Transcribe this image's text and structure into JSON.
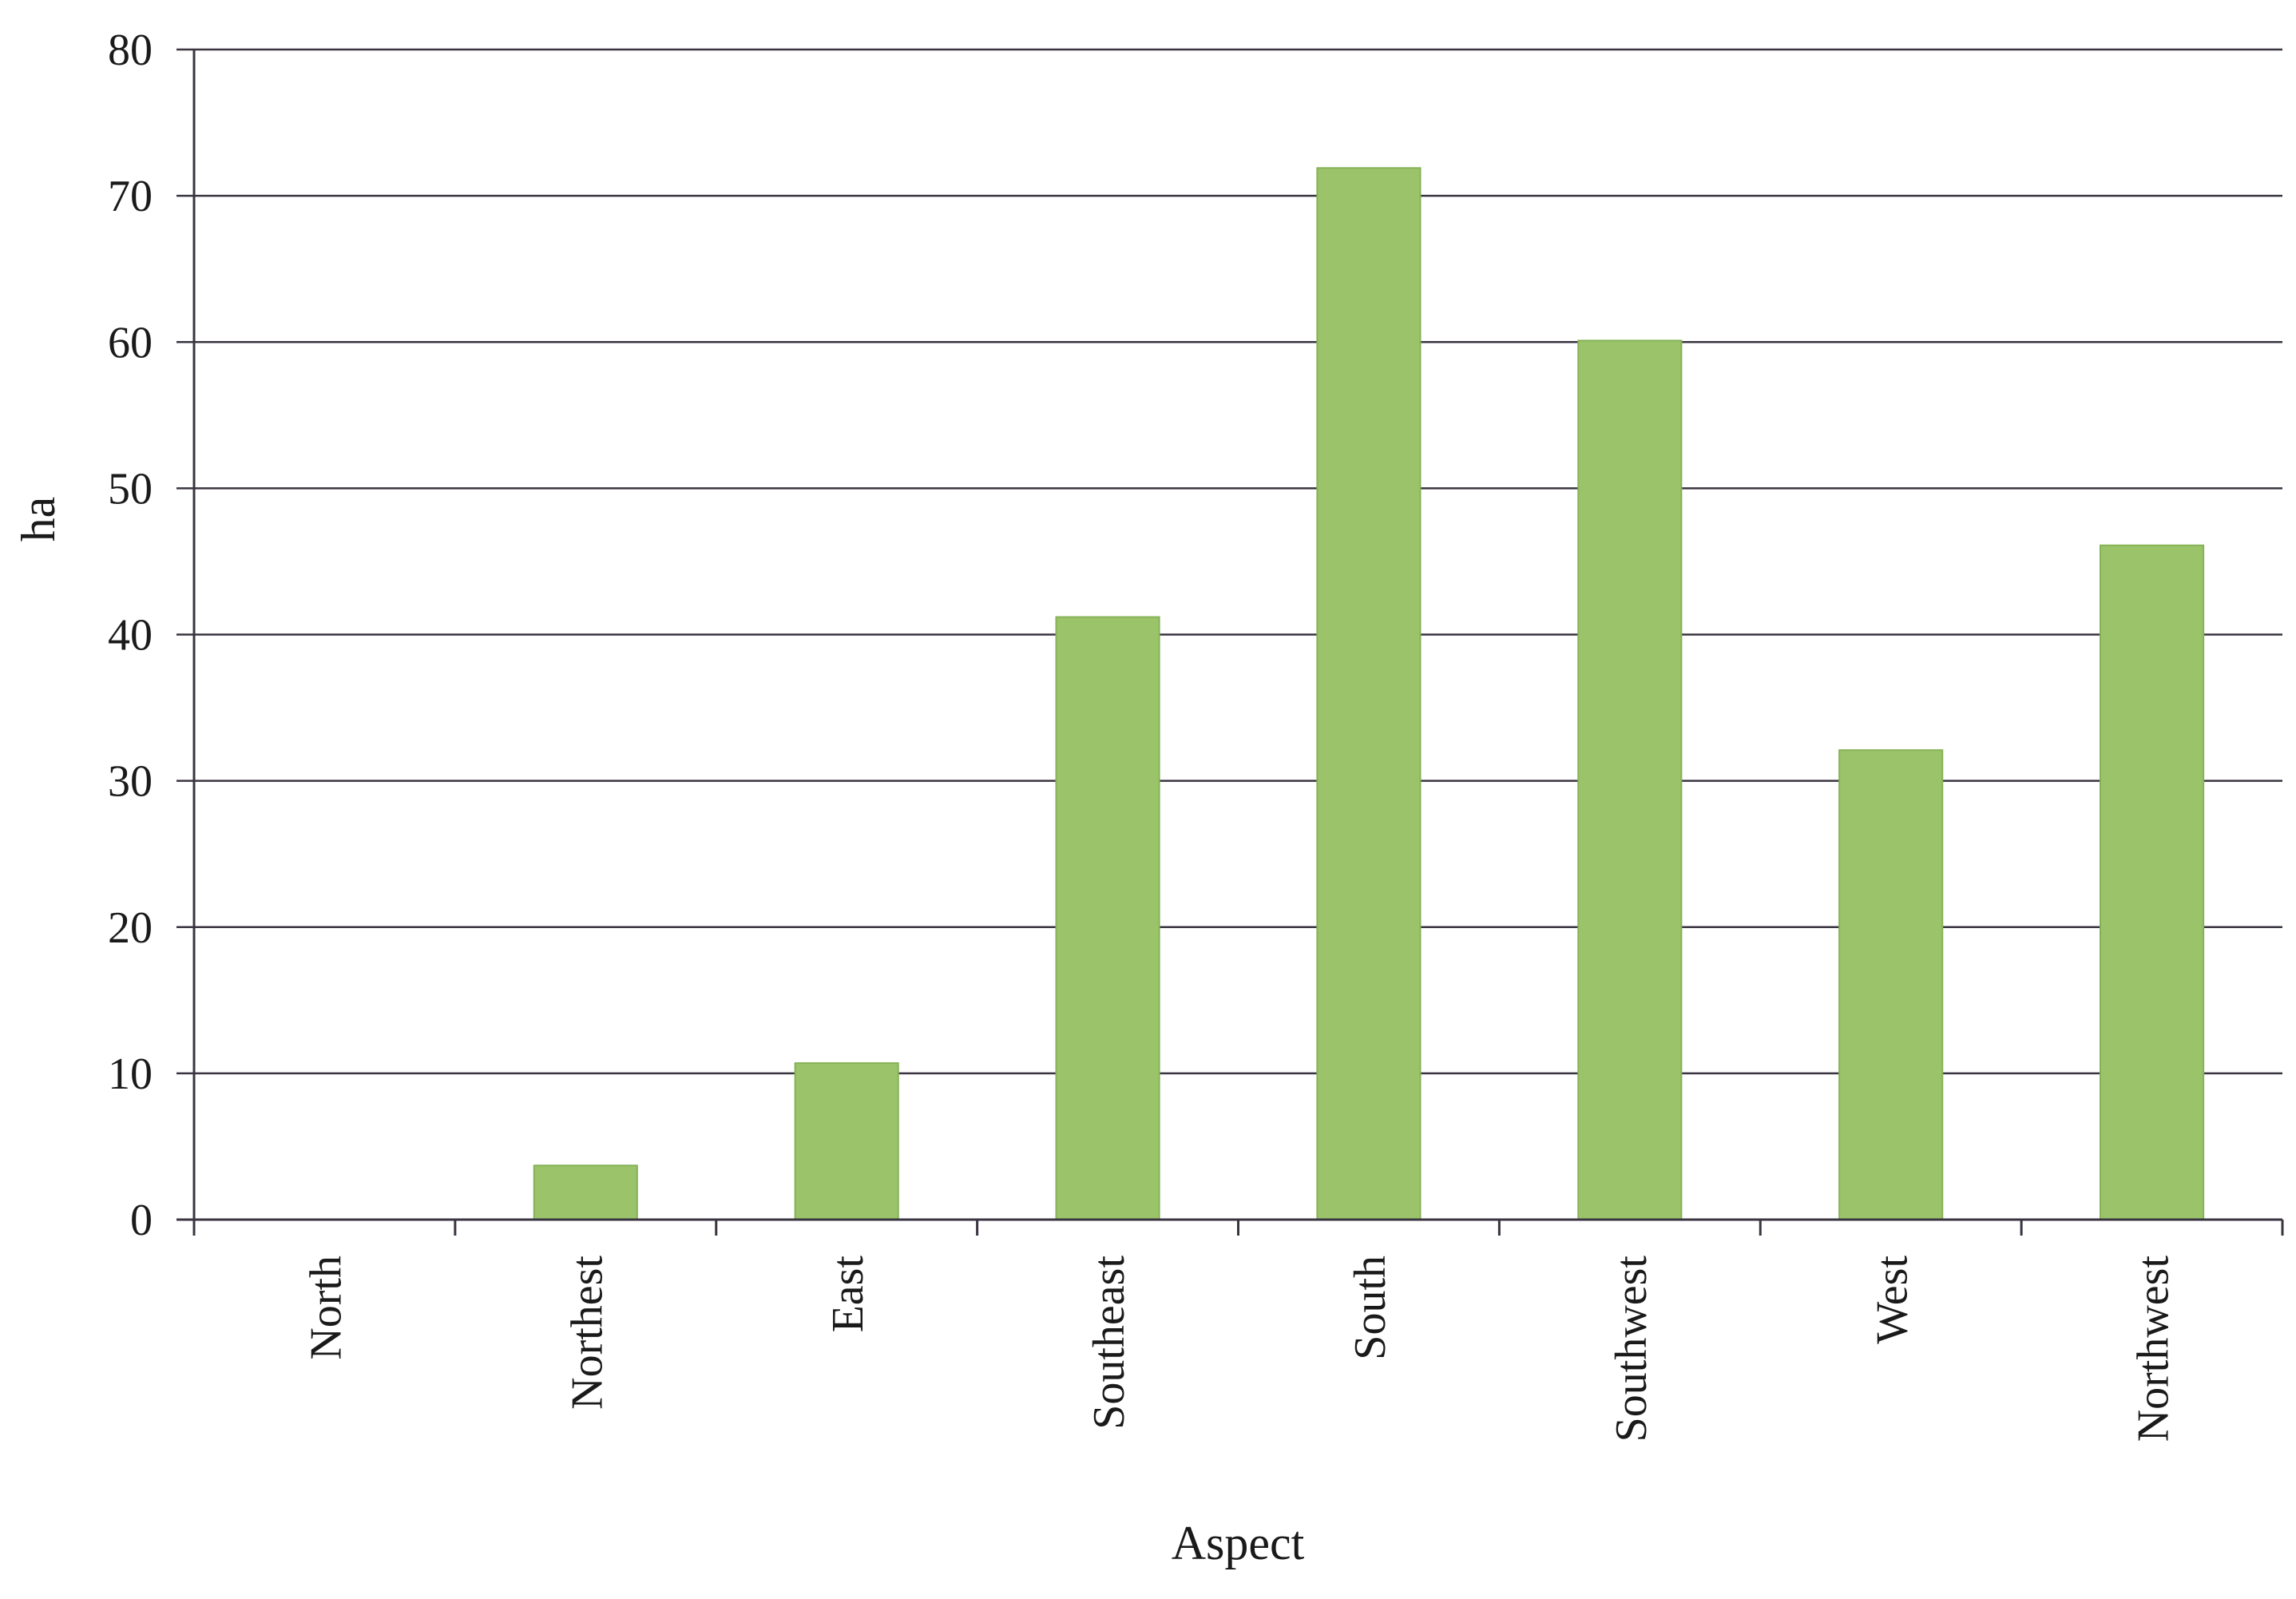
{
  "chart_data": {
    "type": "bar",
    "categories": [
      "North",
      "Northest",
      "East",
      "Southeast",
      "South",
      "Southwest",
      "West",
      "Northwest"
    ],
    "values": [
      0,
      3.7,
      10.7,
      41.2,
      71.9,
      60.1,
      32.1,
      46.1
    ],
    "title": "",
    "xlabel": "Aspect",
    "ylabel": "ha",
    "ylim": [
      0,
      80
    ],
    "yticks": [
      "0",
      "10",
      "20",
      "30",
      "40",
      "50",
      "60",
      "70",
      "80"
    ],
    "grid": true,
    "legend": "none",
    "colors": {
      "bar": "#9bc46a",
      "bar_edge": "#86b257",
      "grid": "#3a3440",
      "axis": "#3a3440"
    }
  }
}
